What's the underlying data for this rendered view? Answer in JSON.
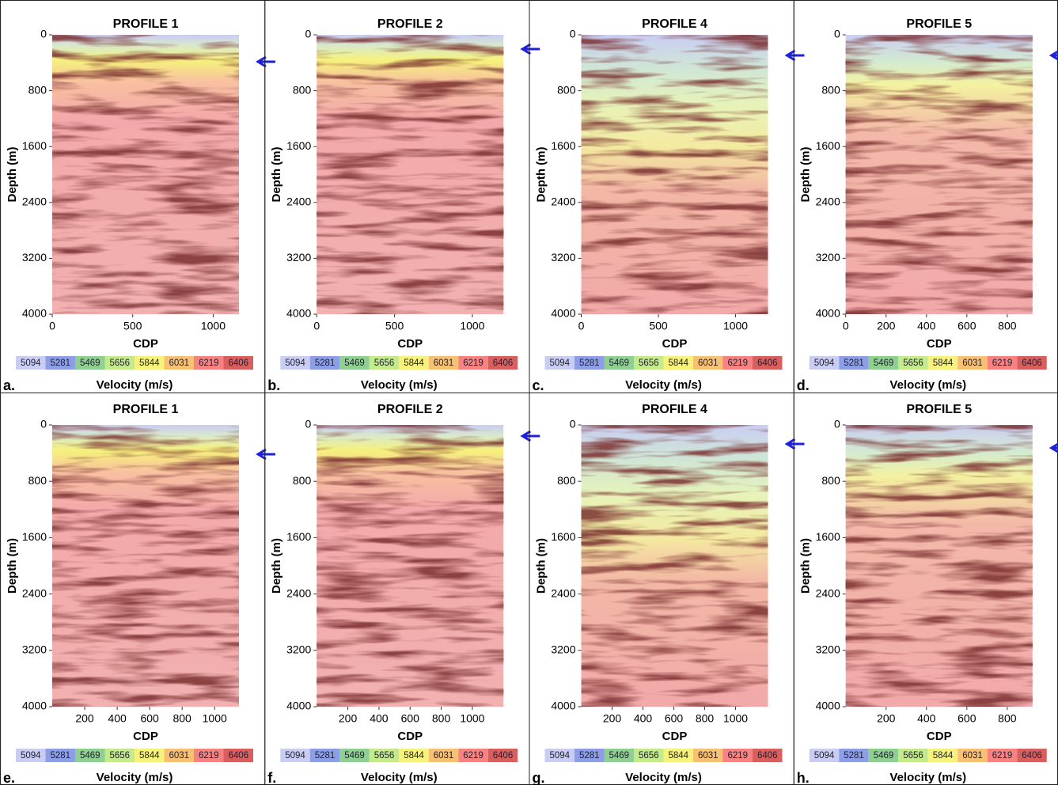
{
  "chart_data": [
    {
      "type": "image",
      "panel_label": "a.",
      "title": "PROFILE 1",
      "xlabel": "CDP",
      "ylabel": "Depth (m)",
      "xlim": [
        0,
        1160
      ],
      "ylim": [
        0,
        4000
      ],
      "xticks": [
        0,
        500,
        1000
      ],
      "yticks": [
        0,
        800,
        1600,
        2400,
        3200,
        4000
      ],
      "colorbar": {
        "label": "Velocity (m/s)",
        "ticks": [
          5094,
          5281,
          5469,
          5656,
          5844,
          6031,
          6219,
          6406
        ],
        "colors": [
          "#c9cdf2",
          "#8e9ee6",
          "#8fd092",
          "#c4ea8c",
          "#f6f27c",
          "#f8c072",
          "#f68282",
          "#d95f5f"
        ]
      }
    },
    {
      "type": "image",
      "panel_label": "b.",
      "title": "PROFILE 2",
      "xlabel": "CDP",
      "ylabel": "Depth (m)",
      "xlim": [
        0,
        1200
      ],
      "ylim": [
        0,
        4000
      ],
      "xticks": [
        0,
        500,
        1000
      ],
      "yticks": [
        0,
        800,
        1600,
        2400,
        3200,
        4000
      ],
      "colorbar": {
        "label": "Velocity (m/s)",
        "ticks": [
          5094,
          5281,
          5469,
          5656,
          5844,
          6031,
          6219,
          6406
        ],
        "colors": [
          "#c9cdf2",
          "#8e9ee6",
          "#8fd092",
          "#c4ea8c",
          "#f6f27c",
          "#f8c072",
          "#f68282",
          "#d95f5f"
        ]
      }
    },
    {
      "type": "image",
      "panel_label": "c.",
      "title": "PROFILE 4",
      "xlabel": "CDP",
      "ylabel": "Depth (m)",
      "xlim": [
        0,
        1210
      ],
      "ylim": [
        0,
        4000
      ],
      "xticks": [
        0,
        500,
        1000
      ],
      "yticks": [
        0,
        800,
        1600,
        2400,
        3200,
        4000
      ],
      "colorbar": {
        "label": "Velocity (m/s)",
        "ticks": [
          5094,
          5281,
          5469,
          5656,
          5844,
          6031,
          6219,
          6406
        ],
        "colors": [
          "#c9cdf2",
          "#8e9ee6",
          "#8fd092",
          "#c4ea8c",
          "#f6f27c",
          "#f8c072",
          "#f68282",
          "#d95f5f"
        ]
      }
    },
    {
      "type": "image",
      "panel_label": "d.",
      "title": "PROFILE 5",
      "xlabel": "CDP",
      "ylabel": "Depth (m)",
      "xlim": [
        0,
        925
      ],
      "ylim": [
        0,
        4000
      ],
      "xticks": [
        0,
        200,
        400,
        600,
        800
      ],
      "yticks": [
        0,
        800,
        1600,
        2400,
        3200,
        4000
      ],
      "colorbar": {
        "label": "Velocity (m/s)",
        "ticks": [
          5094,
          5281,
          5469,
          5656,
          5844,
          6031,
          6219,
          6406
        ],
        "colors": [
          "#c9cdf2",
          "#8e9ee6",
          "#8fd092",
          "#c4ea8c",
          "#f6f27c",
          "#f8c072",
          "#f68282",
          "#d95f5f"
        ]
      }
    },
    {
      "type": "image",
      "panel_label": "e.",
      "title": "PROFILE 1",
      "xlabel": "CDP",
      "ylabel": "Depth (m)",
      "xlim": [
        0,
        1150
      ],
      "ylim": [
        0,
        4000
      ],
      "xticks": [
        200,
        400,
        600,
        800,
        1000
      ],
      "yticks": [
        0,
        800,
        1600,
        2400,
        3200,
        4000
      ],
      "colorbar": {
        "label": "Velocity (m/s)",
        "ticks": [
          5094,
          5281,
          5469,
          5656,
          5844,
          6031,
          6219,
          6406
        ],
        "colors": [
          "#c9cdf2",
          "#8e9ee6",
          "#8fd092",
          "#c4ea8c",
          "#f6f27c",
          "#f8c072",
          "#f68282",
          "#d95f5f"
        ]
      }
    },
    {
      "type": "image",
      "panel_label": "f.",
      "title": "PROFILE 2",
      "xlabel": "CDP",
      "ylabel": "Depth (m)",
      "xlim": [
        0,
        1200
      ],
      "ylim": [
        0,
        4000
      ],
      "xticks": [
        200,
        400,
        600,
        800,
        1000
      ],
      "yticks": [
        0,
        800,
        1600,
        2400,
        3200,
        4000
      ],
      "colorbar": {
        "label": "Velocity (m/s)",
        "ticks": [
          5094,
          5281,
          5469,
          5656,
          5844,
          6031,
          6219,
          6406
        ],
        "colors": [
          "#c9cdf2",
          "#8e9ee6",
          "#8fd092",
          "#c4ea8c",
          "#f6f27c",
          "#f8c072",
          "#f68282",
          "#d95f5f"
        ]
      }
    },
    {
      "type": "image",
      "panel_label": "g.",
      "title": "PROFILE 4",
      "xlabel": "CDP",
      "ylabel": "Depth (m)",
      "xlim": [
        0,
        1210
      ],
      "ylim": [
        0,
        4000
      ],
      "xticks": [
        200,
        400,
        600,
        800,
        1000
      ],
      "yticks": [
        0,
        800,
        1600,
        2400,
        3200,
        4000
      ],
      "colorbar": {
        "label": "Velocity (m/s)",
        "ticks": [
          5094,
          5281,
          5469,
          5656,
          5844,
          6031,
          6219,
          6406
        ],
        "colors": [
          "#c9cdf2",
          "#8e9ee6",
          "#8fd092",
          "#c4ea8c",
          "#f6f27c",
          "#f8c072",
          "#f68282",
          "#d95f5f"
        ]
      }
    },
    {
      "type": "image",
      "panel_label": "h.",
      "title": "PROFILE 5",
      "xlabel": "CDP",
      "ylabel": "Depth (m)",
      "xlim": [
        0,
        925
      ],
      "ylim": [
        0,
        4000
      ],
      "xticks": [
        200,
        400,
        600,
        800
      ],
      "yticks": [
        0,
        800,
        1600,
        2400,
        3200,
        4000
      ],
      "colorbar": {
        "label": "Velocity (m/s)",
        "ticks": [
          5094,
          5281,
          5469,
          5656,
          5844,
          6031,
          6219,
          6406
        ],
        "colors": [
          "#c9cdf2",
          "#8e9ee6",
          "#8fd092",
          "#c4ea8c",
          "#f6f27c",
          "#f8c072",
          "#f68282",
          "#d95f5f"
        ]
      }
    }
  ]
}
